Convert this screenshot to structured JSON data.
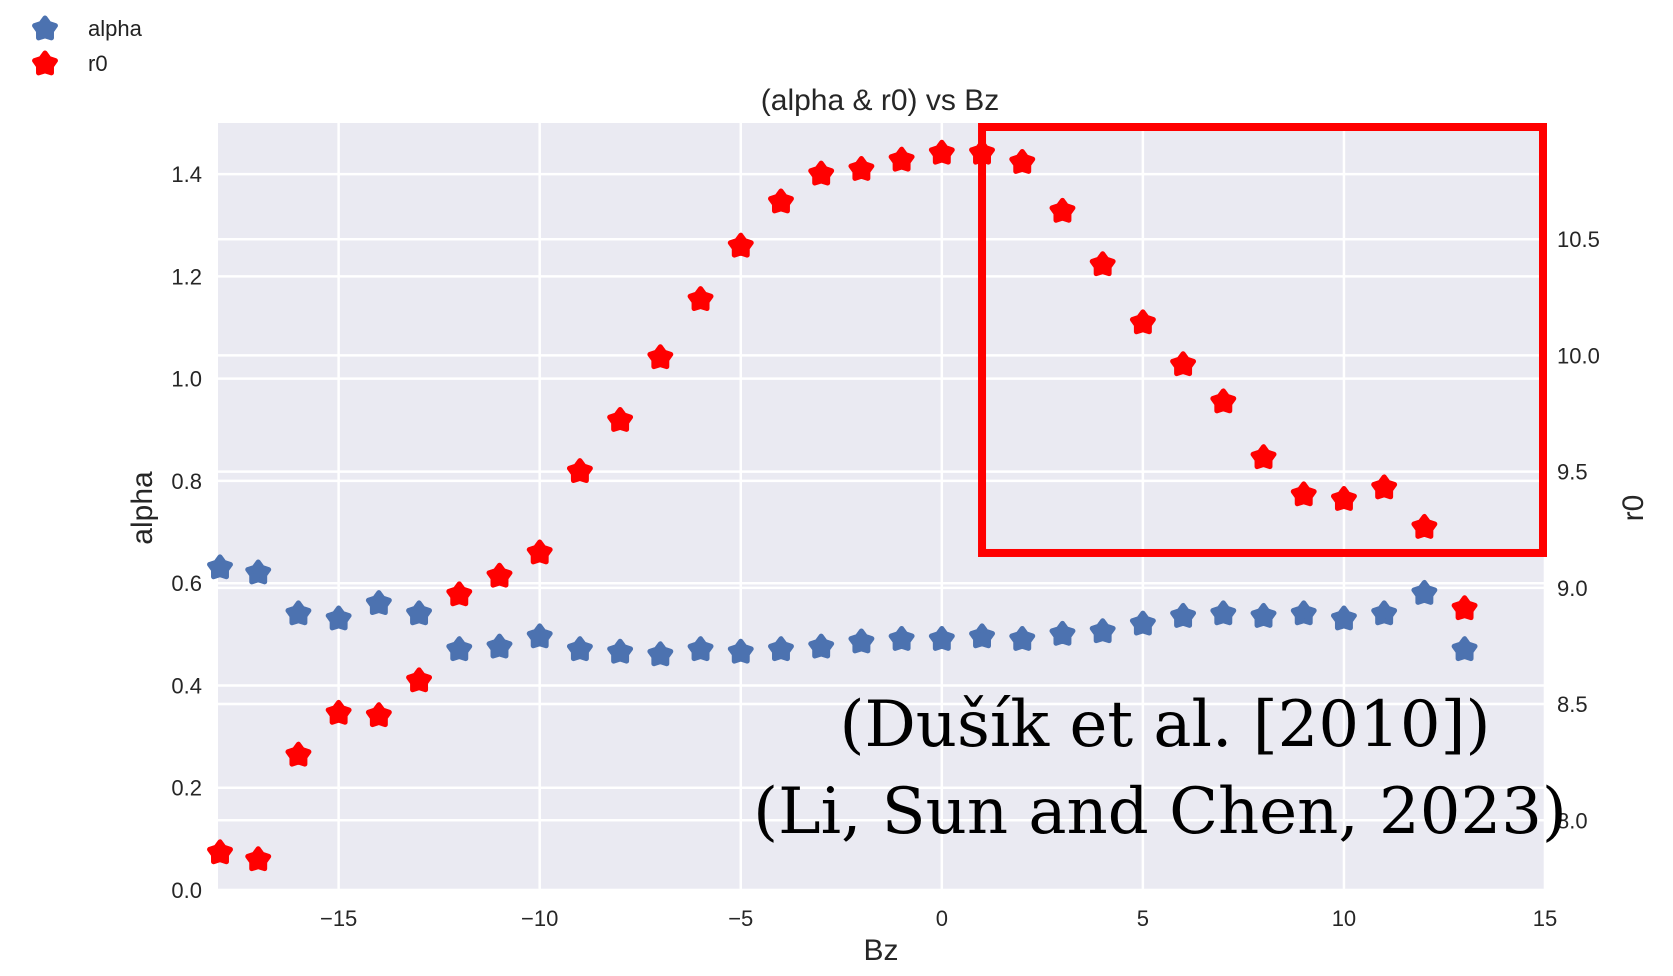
{
  "chart_data": {
    "type": "scatter",
    "title": "(alpha & r0) vs Bz",
    "xlabel": "Bz",
    "ylabel_left": "alpha",
    "ylabel_right": "r0",
    "xlim": [
      -18,
      15
    ],
    "ylim_left": [
      0.0,
      1.5
    ],
    "ylim_right": [
      7.7,
      11.0
    ],
    "xticks": [
      -15,
      -10,
      -5,
      0,
      5,
      10,
      15
    ],
    "xtick_labels": [
      "−15",
      "−10",
      "−5",
      "0",
      "5",
      "10",
      "15"
    ],
    "yticks_left": [
      0.0,
      0.2,
      0.4,
      0.6,
      0.8,
      1.0,
      1.2,
      1.4
    ],
    "ytick_labels_left": [
      "0.0",
      "0.2",
      "0.4",
      "0.6",
      "0.8",
      "1.0",
      "1.2",
      "1.4"
    ],
    "yticks_right": [
      8.0,
      8.5,
      9.0,
      9.5,
      10.0,
      10.5
    ],
    "ytick_labels_right": [
      "8.0",
      "8.5",
      "9.0",
      "9.5",
      "10.0",
      "10.5"
    ],
    "grid": true,
    "legend_position": "top-left outside",
    "series": [
      {
        "name": "alpha",
        "axis": "left",
        "color": "#4c72b0",
        "x": [
          -18,
          -17,
          -16,
          -15,
          -14,
          -13,
          -12,
          -11,
          -10,
          -9,
          -8,
          -7,
          -6,
          -5,
          -4,
          -3,
          -2,
          -1,
          0,
          1,
          2,
          3,
          4,
          5,
          6,
          7,
          8,
          9,
          10,
          11,
          12,
          13
        ],
        "y": [
          0.63,
          0.62,
          0.54,
          0.53,
          0.56,
          0.54,
          0.47,
          0.475,
          0.495,
          0.47,
          0.465,
          0.46,
          0.47,
          0.465,
          0.47,
          0.475,
          0.485,
          0.49,
          0.49,
          0.495,
          0.49,
          0.5,
          0.505,
          0.52,
          0.535,
          0.54,
          0.535,
          0.54,
          0.53,
          0.54,
          0.58,
          0.47
        ]
      },
      {
        "name": "r0",
        "axis": "right",
        "color": "#ff0000",
        "x": [
          -18,
          -17,
          -16,
          -15,
          -14,
          -13,
          -12,
          -11,
          -10,
          -9,
          -8,
          -7,
          -6,
          -5,
          -4,
          -3,
          -2,
          -1,
          0,
          1,
          2,
          3,
          4,
          5,
          6,
          7,
          8,
          9,
          10,
          11,
          12,
          13
        ],
        "y": [
          7.86,
          7.83,
          8.28,
          8.46,
          8.45,
          8.6,
          8.97,
          9.05,
          9.15,
          9.5,
          9.72,
          9.99,
          10.24,
          10.47,
          10.66,
          10.78,
          10.8,
          10.84,
          10.87,
          10.87,
          10.83,
          10.62,
          10.39,
          10.14,
          9.96,
          9.8,
          9.56,
          9.4,
          9.38,
          9.43,
          9.26,
          8.91
        ]
      }
    ],
    "annotations": [
      {
        "text": "(Dušík et al. [2010])",
        "type": "caption"
      },
      {
        "text": "(Li, Sun and Chen, 2023)",
        "type": "caption"
      }
    ],
    "highlight_box": {
      "color": "#ff0000",
      "x_range": [
        1,
        15
      ],
      "y_range_right": [
        9.15,
        11.0
      ]
    }
  }
}
